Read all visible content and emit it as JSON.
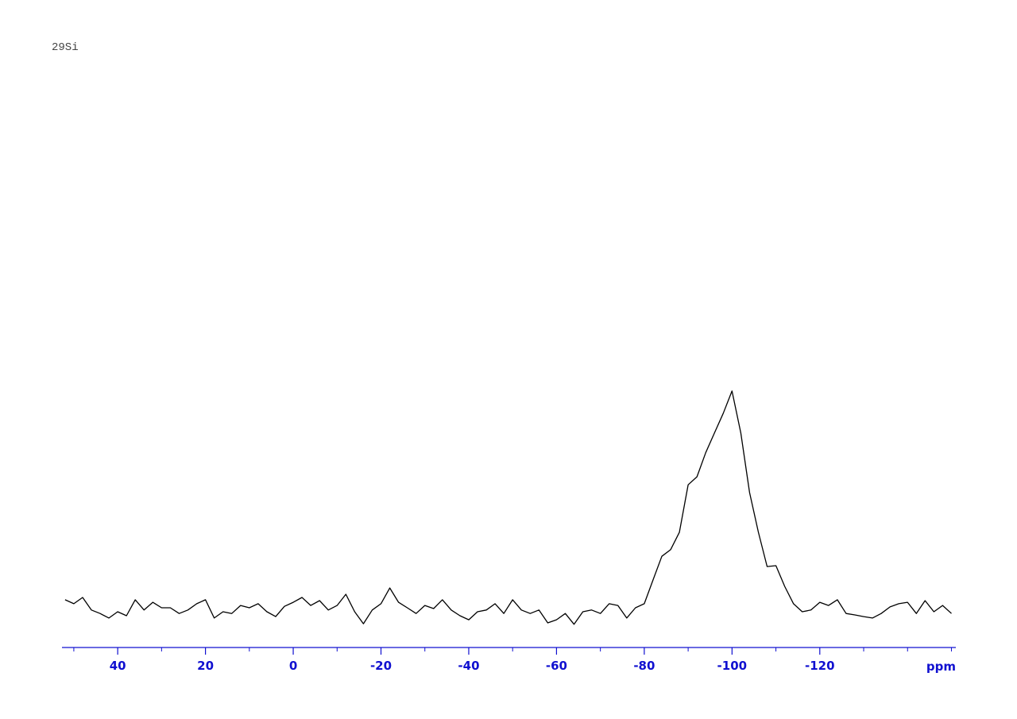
{
  "chart_data": {
    "type": "line",
    "title": "29Si",
    "xlabel": "ppm",
    "x": [
      52,
      50,
      48,
      46,
      44,
      42,
      40,
      38,
      36,
      34,
      32,
      30,
      28,
      26,
      24,
      22,
      20,
      18,
      16,
      14,
      12,
      10,
      8,
      6,
      4,
      2,
      0,
      -2,
      -4,
      -6,
      -8,
      -10,
      -12,
      -14,
      -16,
      -18,
      -20,
      -22,
      -24,
      -26,
      -28,
      -30,
      -32,
      -34,
      -36,
      -38,
      -40,
      -42,
      -44,
      -46,
      -48,
      -50,
      -52,
      -54,
      -56,
      -58,
      -60,
      -62,
      -64,
      -66,
      -68,
      -70,
      -72,
      -74,
      -76,
      -78,
      -80,
      -82,
      -84,
      -86,
      -88,
      -90,
      -92,
      -94,
      -96,
      -98,
      -100,
      -102,
      -104,
      -106,
      -108,
      -110,
      -112,
      -114,
      -116,
      -118,
      -120,
      -122,
      -124,
      -126,
      -128,
      -130,
      -132,
      -134,
      -136,
      -138,
      -140,
      -142,
      -144,
      -146,
      -148,
      -150
    ],
    "series": [
      {
        "color": "#000000",
        "values": [
          16.7,
          15.3,
          17.5,
          13.1,
          11.9,
          10.3,
          12.5,
          11.1,
          16.7,
          13.1,
          15.8,
          13.9,
          13.9,
          11.9,
          13.1,
          15.3,
          16.7,
          10.3,
          12.5,
          11.9,
          14.7,
          13.9,
          15.3,
          12.5,
          10.8,
          14.4,
          15.8,
          17.5,
          14.7,
          16.4,
          13.1,
          14.7,
          18.6,
          12.5,
          8.3,
          13.1,
          15.3,
          20.8,
          15.8,
          13.9,
          11.9,
          14.7,
          13.6,
          16.7,
          13.1,
          11.1,
          9.7,
          12.5,
          13.1,
          15.3,
          11.9,
          16.7,
          13.1,
          11.9,
          13.1,
          8.6,
          9.7,
          11.9,
          8.1,
          12.5,
          13.1,
          11.9,
          15.3,
          14.7,
          10.3,
          13.9,
          15.3,
          23.6,
          31.9,
          34.2,
          40.3,
          56.9,
          59.7,
          68.1,
          75.0,
          81.9,
          89.7,
          75.0,
          54.2,
          40.3,
          28.3,
          28.6,
          21.4,
          15.3,
          12.5,
          13.1,
          15.8,
          14.7,
          16.7,
          11.9,
          11.4,
          10.8,
          10.3,
          11.9,
          14.2,
          15.3,
          15.8,
          11.9,
          16.4,
          12.5,
          14.7,
          11.9
        ]
      }
    ],
    "xlim": [
      52.7,
      -151
    ],
    "xticks": [
      40,
      20,
      0,
      -20,
      -40,
      -60,
      -80,
      -100,
      -120
    ],
    "minor_xticks": [
      50,
      30,
      10,
      -10,
      -30,
      -50,
      -70,
      -90,
      -110,
      -130,
      -140,
      -150
    ],
    "ylim": [
      0,
      100
    ],
    "axis_color": "#1010d0"
  }
}
